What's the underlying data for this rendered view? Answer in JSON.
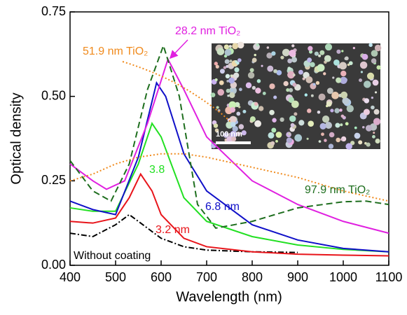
{
  "chart_data": {
    "type": "line",
    "xlabel": "Wavelength (nm)",
    "ylabel": "Optical density",
    "xlim": [
      400,
      1100
    ],
    "xticks": [
      400,
      500,
      600,
      700,
      800,
      900,
      1000,
      1100
    ],
    "ylim": [
      0,
      0.75
    ],
    "yticks": [
      {
        "value": 0,
        "label": "0.00"
      },
      {
        "value": 0.25,
        "label": "0.25"
      },
      {
        "value": 0.5,
        "label": "0.50"
      },
      {
        "value": 0.75,
        "label": "0.75"
      }
    ],
    "inset_label": "100 nm",
    "series": [
      {
        "name": "Without coating",
        "color": "#000000",
        "dash": "8,3,2,3",
        "x": [
          400,
          450,
          500,
          530,
          560,
          600,
          650,
          700,
          800,
          900
        ],
        "values": [
          0.095,
          0.085,
          0.12,
          0.15,
          0.12,
          0.08,
          0.055,
          0.045,
          0.04,
          0.038
        ]
      },
      {
        "name": "3.2 nm",
        "color": "#e8141a",
        "dash": "",
        "x": [
          400,
          450,
          500,
          530,
          555,
          580,
          600,
          650,
          700,
          800,
          900,
          1000,
          1100
        ],
        "values": [
          0.13,
          0.125,
          0.14,
          0.2,
          0.27,
          0.22,
          0.15,
          0.08,
          0.055,
          0.04,
          0.033,
          0.03,
          0.028
        ]
      },
      {
        "name": "3.8",
        "color": "#22e022",
        "dash": "",
        "x": [
          400,
          450,
          500,
          550,
          580,
          600,
          650,
          700,
          800,
          900,
          1000,
          1100
        ],
        "values": [
          0.17,
          0.16,
          0.16,
          0.3,
          0.42,
          0.38,
          0.2,
          0.13,
          0.085,
          0.06,
          0.047,
          0.04
        ]
      },
      {
        "name": "6.8 nm",
        "color": "#1010c8",
        "dash": "",
        "x": [
          400,
          450,
          500,
          550,
          590,
          610,
          650,
          700,
          800,
          900,
          1000,
          1100
        ],
        "values": [
          0.19,
          0.165,
          0.15,
          0.32,
          0.54,
          0.5,
          0.33,
          0.22,
          0.12,
          0.075,
          0.05,
          0.04
        ]
      },
      {
        "name": "28.2 nm TiO₂",
        "color": "#e020e0",
        "dash": "",
        "x": [
          400,
          450,
          480,
          520,
          570,
          615,
          650,
          700,
          800,
          900,
          1000,
          1100
        ],
        "values": [
          0.3,
          0.25,
          0.225,
          0.25,
          0.42,
          0.61,
          0.52,
          0.38,
          0.25,
          0.18,
          0.13,
          0.095
        ]
      },
      {
        "name": "51.9 nm TiO₂",
        "color": "#f08a1c",
        "dash": "2,3",
        "x": [
          400,
          450,
          500,
          550,
          600,
          650,
          700,
          800,
          900,
          1000,
          1100
        ],
        "values": [
          0.25,
          0.27,
          0.3,
          0.32,
          0.33,
          0.33,
          0.32,
          0.29,
          0.26,
          0.22,
          0.19
        ]
      },
      {
        "name": "97.9 nm TiO₂",
        "color": "#1e6e1e",
        "dash": "9,5",
        "x": [
          400,
          450,
          490,
          530,
          570,
          605,
          640,
          680,
          720,
          800,
          900,
          1000,
          1050,
          1100
        ],
        "values": [
          0.31,
          0.22,
          0.19,
          0.3,
          0.52,
          0.65,
          0.5,
          0.18,
          0.11,
          0.13,
          0.17,
          0.188,
          0.19,
          0.18
        ]
      }
    ]
  }
}
